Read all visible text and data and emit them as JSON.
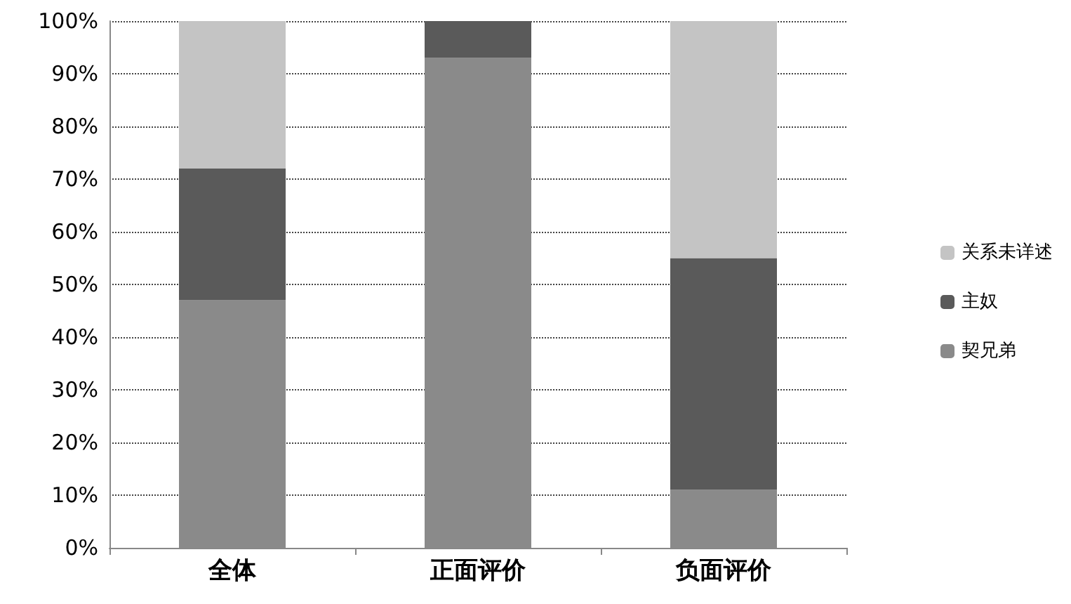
{
  "chart_data": {
    "type": "bar",
    "stacked": true,
    "categories": [
      "全体",
      "正面评价",
      "负面评价"
    ],
    "series": [
      {
        "name": "契兄弟",
        "color": "#8a8a8a",
        "values": [
          47,
          93,
          11
        ]
      },
      {
        "name": "主奴",
        "color": "#5a5a5a",
        "values": [
          25,
          7,
          44
        ]
      },
      {
        "name": "关系未详述",
        "color": "#c4c4c4",
        "values": [
          28,
          0,
          45
        ]
      }
    ],
    "ylim": [
      0,
      100
    ],
    "yticks": [
      {
        "value": 0,
        "label": "0%"
      },
      {
        "value": 10,
        "label": "10%"
      },
      {
        "value": 20,
        "label": "20%"
      },
      {
        "value": 30,
        "label": "30%"
      },
      {
        "value": 40,
        "label": "40%"
      },
      {
        "value": 50,
        "label": "50%"
      },
      {
        "value": 60,
        "label": "60%"
      },
      {
        "value": 70,
        "label": "70%"
      },
      {
        "value": 80,
        "label": "80%"
      },
      {
        "value": 90,
        "label": "90%"
      },
      {
        "value": 100,
        "label": "100%"
      }
    ],
    "grid": "y",
    "legend": "right"
  }
}
